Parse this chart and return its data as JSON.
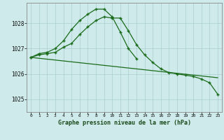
{
  "title": "Graphe pression niveau de la mer (hPa)",
  "background_color": "#ceeaea",
  "grid_color": "#aacece",
  "line_color": "#1a6b1a",
  "xlim": [
    -0.5,
    23.5
  ],
  "ylim": [
    1024.5,
    1028.8
  ],
  "yticks": [
    1025,
    1026,
    1027,
    1028
  ],
  "xticks": [
    0,
    1,
    2,
    3,
    4,
    5,
    6,
    7,
    8,
    9,
    10,
    11,
    12,
    13,
    14,
    15,
    16,
    17,
    18,
    19,
    20,
    21,
    22,
    23
  ],
  "series1_x": [
    0,
    1,
    2,
    3,
    4,
    5,
    6,
    7,
    8,
    9,
    10,
    11,
    12,
    13,
    14,
    15,
    16,
    17,
    18,
    19,
    20,
    21,
    22,
    23
  ],
  "series1_y": [
    1026.65,
    1026.75,
    1026.8,
    1026.85,
    1027.05,
    1027.2,
    1027.55,
    1027.85,
    1028.1,
    1028.25,
    1028.2,
    1028.2,
    1027.7,
    1027.15,
    1026.75,
    1026.45,
    1026.2,
    1026.05,
    1026.0,
    1025.95,
    1025.9,
    1025.8,
    1025.65,
    1025.2
  ],
  "series2_x": [
    0,
    1,
    2,
    3,
    4,
    5,
    6,
    7,
    8,
    9,
    10,
    11,
    12,
    13
  ],
  "series2_y": [
    1026.65,
    1026.8,
    1026.85,
    1027.0,
    1027.3,
    1027.75,
    1028.1,
    1028.35,
    1028.55,
    1028.55,
    1028.25,
    1027.65,
    1027.0,
    1026.6
  ],
  "series3_x": [
    0,
    23
  ],
  "series3_y": [
    1026.65,
    1025.85
  ]
}
